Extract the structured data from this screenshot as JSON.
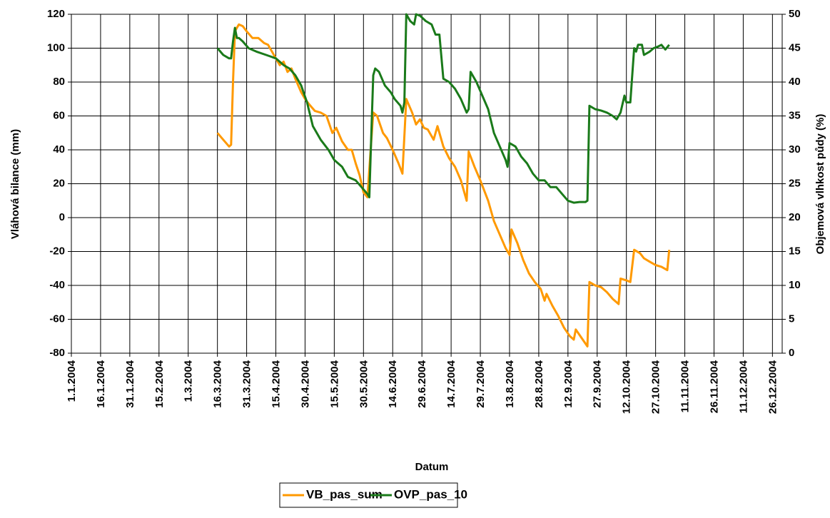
{
  "chart_data": {
    "type": "line",
    "xlabel": "Datum",
    "ylabel": "Vláhová bilance (mm)",
    "y2label": "Objemová vlhkost půdy (%)",
    "xlim": [
      "1.1.2004",
      "31.12.2004"
    ],
    "xticks": [
      "1.1.2004",
      "16.1.2004",
      "31.1.2004",
      "15.2.2004",
      "1.3.2004",
      "16.3.2004",
      "31.3.2004",
      "15.4.2004",
      "30.4.2004",
      "15.5.2004",
      "30.5.2004",
      "14.6.2004",
      "29.6.2004",
      "14.7.2004",
      "29.7.2004",
      "13.8.2004",
      "28.8.2004",
      "12.9.2004",
      "27.9.2004",
      "12.10.2004",
      "27.10.2004",
      "11.11.2004",
      "26.11.2004",
      "11.12.2004",
      "26.12.2004"
    ],
    "ylim": [
      -80,
      120
    ],
    "yticks": [
      -80,
      -60,
      -40,
      -20,
      0,
      20,
      40,
      60,
      80,
      100,
      120
    ],
    "y2lim": [
      0,
      50
    ],
    "y2ticks": [
      0,
      5,
      10,
      15,
      20,
      25,
      30,
      35,
      40,
      45,
      50
    ],
    "grid": true,
    "legend": "bottom",
    "series": [
      {
        "name": "VB_pas_sum",
        "color": "#ff9900",
        "axis": "y",
        "x": [
          "16.3.2004",
          "19.3.2004",
          "22.3.2004",
          "23.3.2004",
          "24.3.2004",
          "25.3.2004",
          "27.3.2004",
          "29.3.2004",
          "31.3.2004",
          "3.4.2004",
          "6.4.2004",
          "9.4.2004",
          "11.4.2004",
          "14.4.2004",
          "17.4.2004",
          "19.4.2004",
          "21.4.2004",
          "23.4.2004",
          "25.4.2004",
          "28.4.2004",
          "30.4.2004",
          "2.5.2004",
          "5.5.2004",
          "8.5.2004",
          "11.5.2004",
          "14.5.2004",
          "16.5.2004",
          "19.5.2004",
          "22.5.2004",
          "24.5.2004",
          "26.5.2004",
          "28.5.2004",
          "30.5.2004",
          "1.6.2004",
          "3.6.2004",
          "4.6.2004",
          "6.6.2004",
          "9.6.2004",
          "11.6.2004",
          "14.6.2004",
          "17.6.2004",
          "19.6.2004",
          "21.6.2004",
          "24.6.2004",
          "26.6.2004",
          "28.6.2004",
          "30.6.2004",
          "2.7.2004",
          "5.7.2004",
          "7.7.2004",
          "10.7.2004",
          "13.7.2004",
          "16.7.2004",
          "19.7.2004",
          "22.7.2004",
          "23.7.2004",
          "26.7.2004",
          "29.7.2004",
          "2.8.2004",
          "5.8.2004",
          "8.8.2004",
          "11.8.2004",
          "13.8.2004",
          "14.8.2004",
          "17.8.2004",
          "20.8.2004",
          "23.8.2004",
          "26.8.2004",
          "29.8.2004",
          "31.8.2004",
          "1.9.2004",
          "4.9.2004",
          "7.9.2004",
          "10.9.2004",
          "13.9.2004",
          "15.9.2004",
          "16.9.2004",
          "19.9.2004",
          "22.9.2004",
          "23.9.2004",
          "26.9.2004",
          "29.9.2004",
          "2.10.2004",
          "5.10.2004",
          "8.10.2004",
          "9.10.2004",
          "12.10.2004",
          "14.10.2004",
          "16.10.2004",
          "19.10.2004",
          "21.10.2004",
          "24.10.2004",
          "27.10.2004",
          "30.10.2004",
          "2.11.2004",
          "3.11.2004"
        ],
        "values": [
          50,
          46,
          42,
          43,
          80,
          110,
          114,
          113,
          110,
          106,
          106,
          103,
          102,
          96,
          90,
          92,
          86,
          88,
          82,
          74,
          70,
          67,
          63,
          62,
          60,
          50,
          53,
          45,
          40,
          40,
          32,
          25,
          15,
          12,
          45,
          62,
          60,
          50,
          47,
          40,
          32,
          26,
          70,
          62,
          55,
          58,
          53,
          52,
          46,
          54,
          42,
          35,
          30,
          22,
          10,
          39,
          30,
          22,
          10,
          -2,
          -10,
          -18,
          -22,
          -7,
          -15,
          -25,
          -33,
          -38,
          -42,
          -49,
          -45,
          -52,
          -58,
          -65,
          -70,
          -72,
          -66,
          -71,
          -76,
          -38,
          -40,
          -41,
          -44,
          -48,
          -51,
          -36,
          -37,
          -38,
          -19,
          -21,
          -24,
          -26,
          -28,
          -29,
          -31,
          -19
        ]
      },
      {
        "name": "OVP_pas_10",
        "color": "#1a7a1a",
        "axis": "y2",
        "x": [
          "16.3.2004",
          "19.3.2004",
          "22.3.2004",
          "23.3.2004",
          "24.3.2004",
          "25.3.2004",
          "26.3.2004",
          "27.3.2004",
          "29.3.2004",
          "1.4.2004",
          "5.4.2004",
          "10.4.2004",
          "15.4.2004",
          "19.4.2004",
          "22.4.2004",
          "25.4.2004",
          "28.4.2004",
          "1.5.2004",
          "4.5.2004",
          "8.5.2004",
          "12.5.2004",
          "15.5.2004",
          "19.5.2004",
          "22.5.2004",
          "26.5.2004",
          "29.5.2004",
          "1.6.2004",
          "2.6.2004",
          "3.6.2004",
          "4.6.2004",
          "5.6.2004",
          "7.6.2004",
          "10.6.2004",
          "13.6.2004",
          "15.6.2004",
          "18.6.2004",
          "19.6.2004",
          "20.6.2004",
          "21.6.2004",
          "23.6.2004",
          "25.6.2004",
          "26.6.2004",
          "28.6.2004",
          "1.7.2004",
          "4.7.2004",
          "6.7.2004",
          "8.7.2004",
          "10.7.2004",
          "13.7.2004",
          "16.7.2004",
          "19.7.2004",
          "22.7.2004",
          "23.7.2004",
          "24.7.2004",
          "27.7.2004",
          "30.7.2004",
          "2.8.2004",
          "5.8.2004",
          "8.8.2004",
          "11.8.2004",
          "12.8.2004",
          "13.8.2004",
          "16.8.2004",
          "19.8.2004",
          "22.8.2004",
          "25.8.2004",
          "28.8.2004",
          "31.8.2004",
          "3.9.2004",
          "6.9.2004",
          "9.9.2004",
          "12.9.2004",
          "15.9.2004",
          "18.9.2004",
          "21.9.2004",
          "22.9.2004",
          "23.9.2004",
          "26.9.2004",
          "29.9.2004",
          "2.10.2004",
          "5.10.2004",
          "7.10.2004",
          "9.10.2004",
          "11.10.2004",
          "12.10.2004",
          "14.10.2004",
          "16.10.2004",
          "17.10.2004",
          "18.10.2004",
          "20.10.2004",
          "21.10.2004",
          "24.10.2004",
          "26.10.2004",
          "28.10.2004",
          "30.10.2004",
          "1.11.2004",
          "3.11.2004"
        ],
        "values": [
          45,
          44,
          43.5,
          43.5,
          46,
          48,
          46.5,
          46.5,
          46,
          45,
          44.5,
          44,
          43.5,
          42.5,
          42,
          41,
          39.5,
          37,
          33.5,
          31.5,
          30,
          28.5,
          27.5,
          26,
          25.5,
          24.5,
          23.5,
          23,
          32,
          41,
          42,
          41.5,
          39.5,
          38.5,
          37.5,
          36.5,
          35.5,
          37,
          50,
          49,
          48.5,
          50,
          49.8,
          49,
          48.5,
          47,
          47,
          40.5,
          40,
          39,
          37.5,
          35.5,
          36,
          41.5,
          40,
          38,
          36,
          32.5,
          30.5,
          28.5,
          27.5,
          31,
          30.5,
          29,
          28,
          26.5,
          25.5,
          25.5,
          24.5,
          24.5,
          23.5,
          22.5,
          22.2,
          22.3,
          22.3,
          22.5,
          36.5,
          36,
          35.8,
          35.5,
          35,
          34.5,
          35.5,
          38,
          37,
          37,
          45,
          44.5,
          45.5,
          45.5,
          44,
          44.5,
          45,
          45.2,
          45.5,
          44.8,
          45.5
        ]
      }
    ]
  }
}
